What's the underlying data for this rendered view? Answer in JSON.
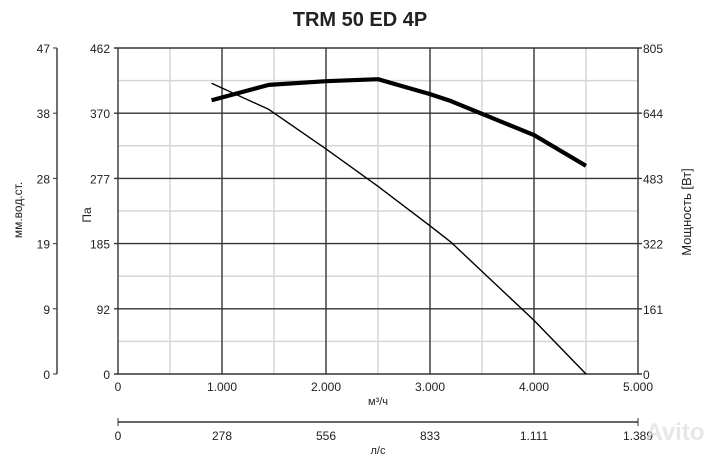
{
  "chart_data": {
    "type": "line",
    "title": "TRM 50 ED 4P",
    "xlabel": "м³/ч",
    "x2label": "л/с",
    "ylabel_left_outer": "мм.вод.ст.",
    "ylabel_left": "Па",
    "ylabel_right": "Мощность [Вт]",
    "xlim": [
      0,
      5000
    ],
    "ylim": [
      0,
      462
    ],
    "y2lim": [
      0,
      805
    ],
    "x_ticks": [
      "0",
      "1.000",
      "2.000",
      "3.000",
      "4.000",
      "5.000"
    ],
    "x2_ticks": [
      "0",
      "278",
      "556",
      "833",
      "1.111",
      "1.389"
    ],
    "y_ticks_pa": [
      "0",
      "92",
      "185",
      "277",
      "370",
      "462"
    ],
    "y_ticks_mm": [
      "0",
      "9",
      "19",
      "28",
      "38",
      "47"
    ],
    "y_ticks_w": [
      "0",
      "161",
      "322",
      "483",
      "644",
      "805"
    ],
    "grid": true,
    "series": [
      {
        "axis": "left",
        "line": "thin",
        "x": [
          900,
          1450,
          2000,
          2500,
          3000,
          3200,
          4000,
          4500
        ],
        "values": [
          412,
          375,
          319,
          266,
          210,
          187,
          76,
          0
        ]
      },
      {
        "axis": "right",
        "line": "thick",
        "x": [
          900,
          1450,
          2000,
          2500,
          3000,
          3200,
          4000,
          4500
        ],
        "values": [
          676,
          714,
          723,
          728,
          691,
          674,
          590,
          514
        ]
      }
    ]
  },
  "watermark": "Avito"
}
